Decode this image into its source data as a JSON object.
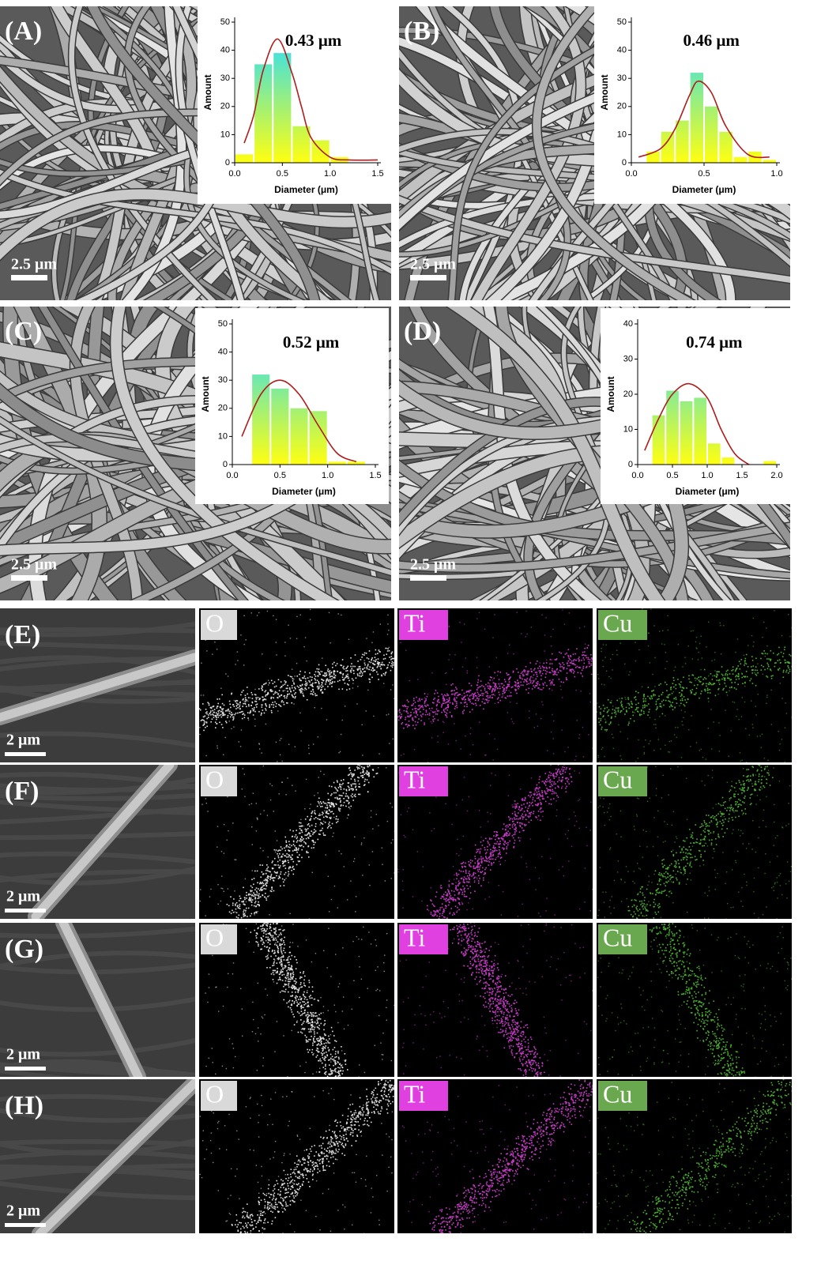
{
  "chart_data": [
    {
      "type": "histogram",
      "title": "0.43 μm",
      "x_label": "Diameter (μm)",
      "y_label": "Amount",
      "bins": [
        0,
        0.2,
        0.4,
        0.6,
        0.8,
        1.0,
        1.2
      ],
      "counts": [
        3,
        35,
        39,
        13,
        8,
        2
      ],
      "colors": [
        "#ffff10",
        "#30def2"
      ],
      "fit": {
        "x": [
          0.1,
          0.2,
          0.3,
          0.45,
          0.6,
          0.7,
          0.8,
          1.0,
          1.2,
          1.5
        ],
        "values": [
          7,
          17,
          33,
          44,
          32,
          20,
          9,
          2,
          1,
          1
        ],
        "color": "#b01c1c"
      },
      "xlim": [
        0,
        1.5
      ],
      "xticks": [
        {
          "value": 0,
          "label": "0.0"
        },
        0.5,
        {
          "value": 1,
          "label": "1.0"
        },
        1.5
      ],
      "ylim": [
        0,
        50
      ],
      "yticks": [
        0,
        10,
        20,
        30,
        40,
        50
      ]
    },
    {
      "type": "histogram",
      "title": "0.46 μm",
      "x_label": "Diameter (μm)",
      "y_label": "Amount",
      "bins": [
        0.1,
        0.2,
        0.3,
        0.4,
        0.5,
        0.6,
        0.7,
        0.8,
        0.9,
        1.0
      ],
      "counts": [
        4,
        11,
        15,
        32,
        20,
        11,
        2,
        4,
        1
      ],
      "colors": [
        "#ffff10",
        "#30def2"
      ],
      "fit": {
        "x": [
          0.05,
          0.2,
          0.3,
          0.4,
          0.46,
          0.55,
          0.65,
          0.8,
          0.95
        ],
        "values": [
          2,
          5,
          12,
          24,
          29,
          25,
          13,
          3,
          2
        ],
        "color": "#b01c1c"
      },
      "xlim": [
        0,
        1.0
      ],
      "xticks": [
        {
          "value": 0,
          "label": "0.0"
        },
        0.5,
        {
          "value": 1,
          "label": "1.0"
        }
      ],
      "ylim": [
        0,
        50
      ],
      "yticks": [
        0,
        10,
        20,
        30,
        40,
        50
      ]
    },
    {
      "type": "histogram",
      "title": "0.52 μm",
      "x_label": "Diameter (μm)",
      "y_label": "Amount",
      "bins": [
        0.2,
        0.4,
        0.6,
        0.8,
        1.0,
        1.2,
        1.4
      ],
      "counts": [
        32,
        27,
        20,
        19,
        1,
        1
      ],
      "colors": [
        "#ffff10",
        "#30def2"
      ],
      "fit": {
        "x": [
          0.1,
          0.3,
          0.5,
          0.7,
          0.9,
          1.1,
          1.3
        ],
        "values": [
          10,
          25,
          30,
          25,
          14,
          4,
          1
        ],
        "color": "#b01c1c"
      },
      "xlim": [
        0,
        1.5
      ],
      "xticks": [
        {
          "value": 0,
          "label": "0.0"
        },
        0.5,
        {
          "value": 1,
          "label": "1.0"
        },
        1.5
      ],
      "ylim": [
        0,
        50
      ],
      "yticks": [
        0,
        10,
        20,
        30,
        40,
        50
      ]
    },
    {
      "type": "histogram",
      "title": "0.74 μm",
      "x_label": "Diameter (μm)",
      "y_label": "Amount",
      "bins": [
        0.2,
        0.4,
        0.6,
        0.8,
        1.0,
        1.2,
        1.4,
        1.6,
        1.8,
        2.0
      ],
      "counts": [
        14,
        21,
        18,
        19,
        6,
        2,
        0,
        0,
        1
      ],
      "colors": [
        "#ffff10",
        "#30def2"
      ],
      "fit": {
        "x": [
          0.1,
          0.3,
          0.5,
          0.74,
          1.0,
          1.2,
          1.4,
          1.6
        ],
        "values": [
          4,
          13,
          20,
          23,
          19,
          10,
          3,
          0
        ],
        "color": "#b01c1c"
      },
      "xlim": [
        0,
        2.0
      ],
      "xticks": [
        {
          "value": 0,
          "label": "0.0"
        },
        0.5,
        {
          "value": 1,
          "label": "1.0"
        },
        1.5,
        {
          "value": 2,
          "label": "2.0"
        }
      ],
      "ylim": [
        0,
        40
      ],
      "yticks": [
        0,
        10,
        20,
        30,
        40
      ]
    }
  ],
  "panels": [
    {
      "label": "(A)",
      "scale": "2.5 μm"
    },
    {
      "label": "(B)",
      "scale": "2.5 μm"
    },
    {
      "label": "(C)",
      "scale": "2.5 μm"
    },
    {
      "label": "(D)",
      "scale": "2.5 μm"
    }
  ],
  "eds_rows": [
    {
      "label": "(E)",
      "scale": "2 μm",
      "elements": [
        "O",
        "Ti",
        "Cu"
      ]
    },
    {
      "label": "(F)",
      "scale": "2 μm",
      "elements": [
        "O",
        "Ti",
        "Cu"
      ]
    },
    {
      "label": "(G)",
      "scale": "2 μm",
      "elements": [
        "O",
        "Ti",
        "Cu"
      ]
    },
    {
      "label": "(H)",
      "scale": "2 μm",
      "elements": [
        "O",
        "Ti",
        "Cu"
      ]
    }
  ]
}
